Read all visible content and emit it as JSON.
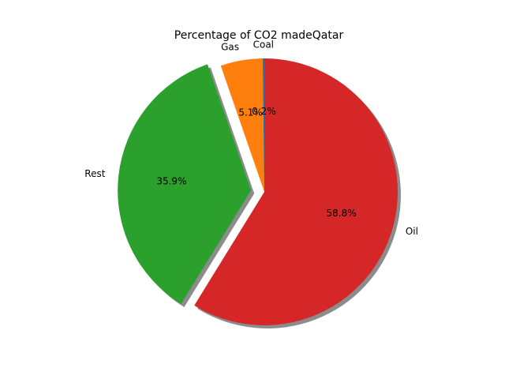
{
  "chart_data": {
    "type": "pie",
    "title": "Percentage of CO2 madeQatar",
    "slices": [
      {
        "label": "Coal",
        "value": 0.2,
        "pct_label": "0.2%",
        "color": "#1f77b4",
        "exploded": false
      },
      {
        "label": "Gas",
        "value": 5.1,
        "pct_label": "5.1%",
        "color": "#ff7f0e",
        "exploded": false
      },
      {
        "label": "Rest",
        "value": 35.9,
        "pct_label": "35.9%",
        "color": "#2ca02c",
        "exploded": true
      },
      {
        "label": "Oil",
        "value": 58.8,
        "pct_label": "58.8%",
        "color": "#d62728",
        "exploded": false
      }
    ],
    "start_angle": "90 degrees (top), counter-clockwise",
    "shadow": true,
    "legend": "none"
  }
}
